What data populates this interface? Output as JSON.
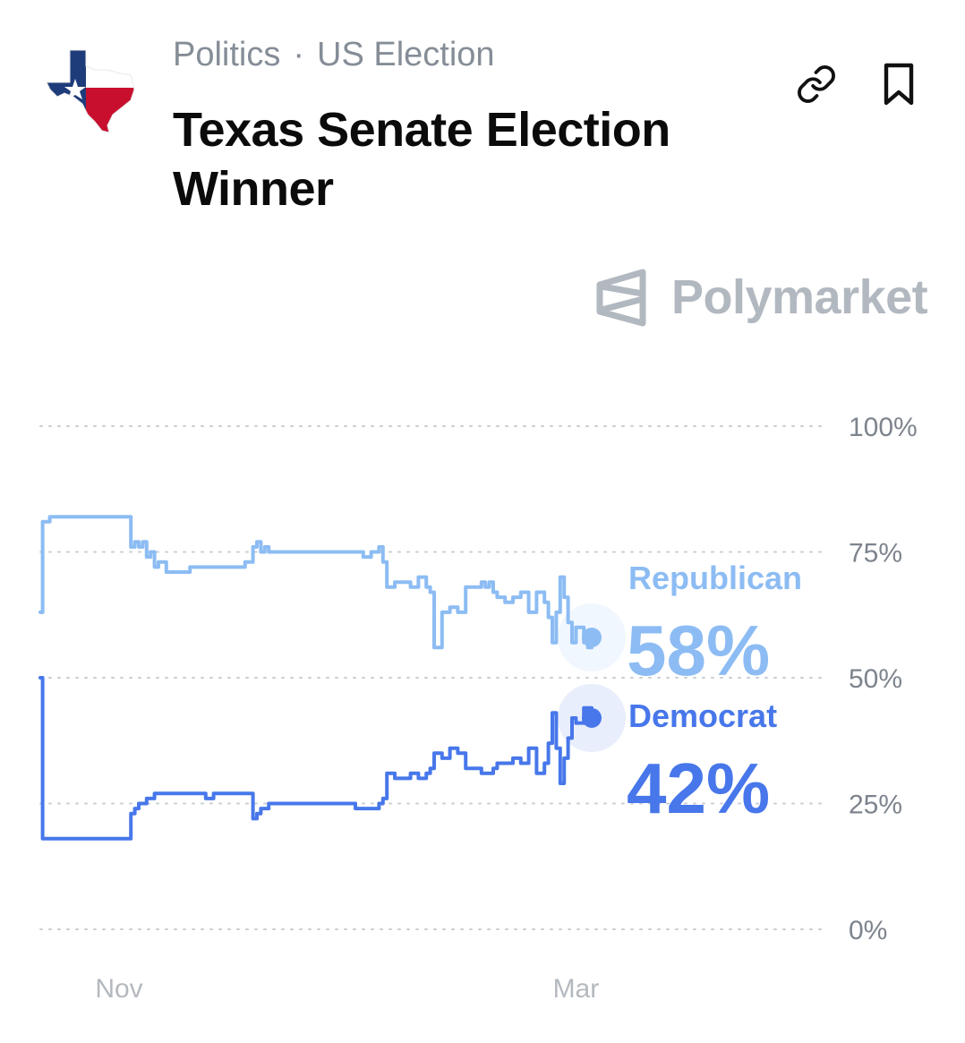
{
  "header": {
    "breadcrumb": [
      "Politics",
      "US Election"
    ],
    "separator": "·",
    "title": "Texas Senate Election Winner",
    "link_icon": "link-icon",
    "bookmark_icon": "bookmark-icon",
    "flag_icon": "texas-flag-map-icon"
  },
  "brand": {
    "name": "Polymarket",
    "icon": "polymarket-logo-icon"
  },
  "chart_data": {
    "type": "line",
    "ylim": [
      0,
      100
    ],
    "yticks": [
      0,
      25,
      50,
      75,
      100
    ],
    "ytick_labels": [
      "0%",
      "25%",
      "50%",
      "75%",
      "100%"
    ],
    "xtick_labels": [
      "Nov",
      "Mar"
    ],
    "xtick_positions": [
      10,
      68
    ],
    "grid": true,
    "series": [
      {
        "name": "Republican",
        "value_label": "58%",
        "color": "#8cbcf3",
        "x": [
          0,
          0.3,
          1.2,
          3.5,
          6,
          7,
          11,
          11.5,
          12,
          12.5,
          13,
          13.5,
          14,
          14.5,
          15,
          16,
          17,
          19,
          20,
          21,
          22,
          24,
          26,
          27,
          27.5,
          28,
          28.5,
          29,
          30,
          32,
          35,
          38,
          40,
          41,
          42,
          43,
          43.5,
          44,
          45,
          47,
          48,
          49,
          49.5,
          50,
          51,
          52,
          53,
          54,
          55,
          56,
          56.5,
          57,
          57.5,
          58,
          59,
          60,
          61,
          62,
          63,
          64,
          64.5,
          65,
          65.5,
          66,
          66.5,
          67,
          67.5,
          68,
          69,
          69.5,
          70
        ],
        "y": [
          63,
          81,
          82,
          82,
          82,
          82,
          82,
          76,
          77,
          76,
          77,
          74,
          75,
          72,
          73,
          71,
          71,
          72,
          72,
          72,
          72,
          72,
          73,
          76,
          77,
          75,
          76,
          75,
          75,
          75,
          75,
          75,
          75,
          74,
          75,
          76,
          73,
          68,
          69,
          68,
          70,
          68,
          67,
          56,
          63,
          64,
          63,
          68,
          68,
          69,
          68,
          69,
          67,
          66,
          65,
          66,
          67,
          63,
          67,
          65,
          62,
          57,
          63,
          70,
          66,
          61,
          57,
          60,
          57,
          56,
          58
        ]
      },
      {
        "name": "Democrat",
        "value_label": "42%",
        "color": "#4777ea",
        "x": [
          0,
          0.3,
          1.2,
          3.5,
          6,
          7,
          11,
          11.5,
          12,
          12.5,
          13,
          13.5,
          14,
          14.5,
          15,
          16,
          17,
          19,
          20,
          21,
          22,
          24,
          26,
          27,
          27.5,
          28,
          28.5,
          29,
          30,
          32,
          35,
          38,
          40,
          41,
          42,
          43,
          43.5,
          44,
          45,
          47,
          48,
          49,
          49.5,
          50,
          51,
          52,
          53,
          54,
          55,
          56,
          56.5,
          57,
          57.5,
          58,
          59,
          60,
          61,
          62,
          63,
          64,
          64.5,
          65,
          65.5,
          66,
          66.5,
          67,
          67.5,
          68,
          69,
          69.5,
          70
        ],
        "y": [
          50,
          18,
          18,
          18,
          18,
          18,
          18,
          23,
          24,
          25,
          25,
          26,
          26,
          27,
          27,
          27,
          27,
          27,
          27,
          26,
          27,
          27,
          27,
          22,
          23,
          24,
          24,
          25,
          25,
          25,
          25,
          25,
          24,
          24,
          24,
          25,
          26,
          31,
          30,
          31,
          30,
          31,
          32,
          35,
          34,
          36,
          35,
          32,
          32,
          31,
          31,
          31,
          32,
          33,
          33,
          34,
          33,
          36,
          31,
          33,
          37,
          43,
          36,
          29,
          34,
          38,
          42,
          41,
          44,
          44,
          42
        ]
      }
    ]
  }
}
